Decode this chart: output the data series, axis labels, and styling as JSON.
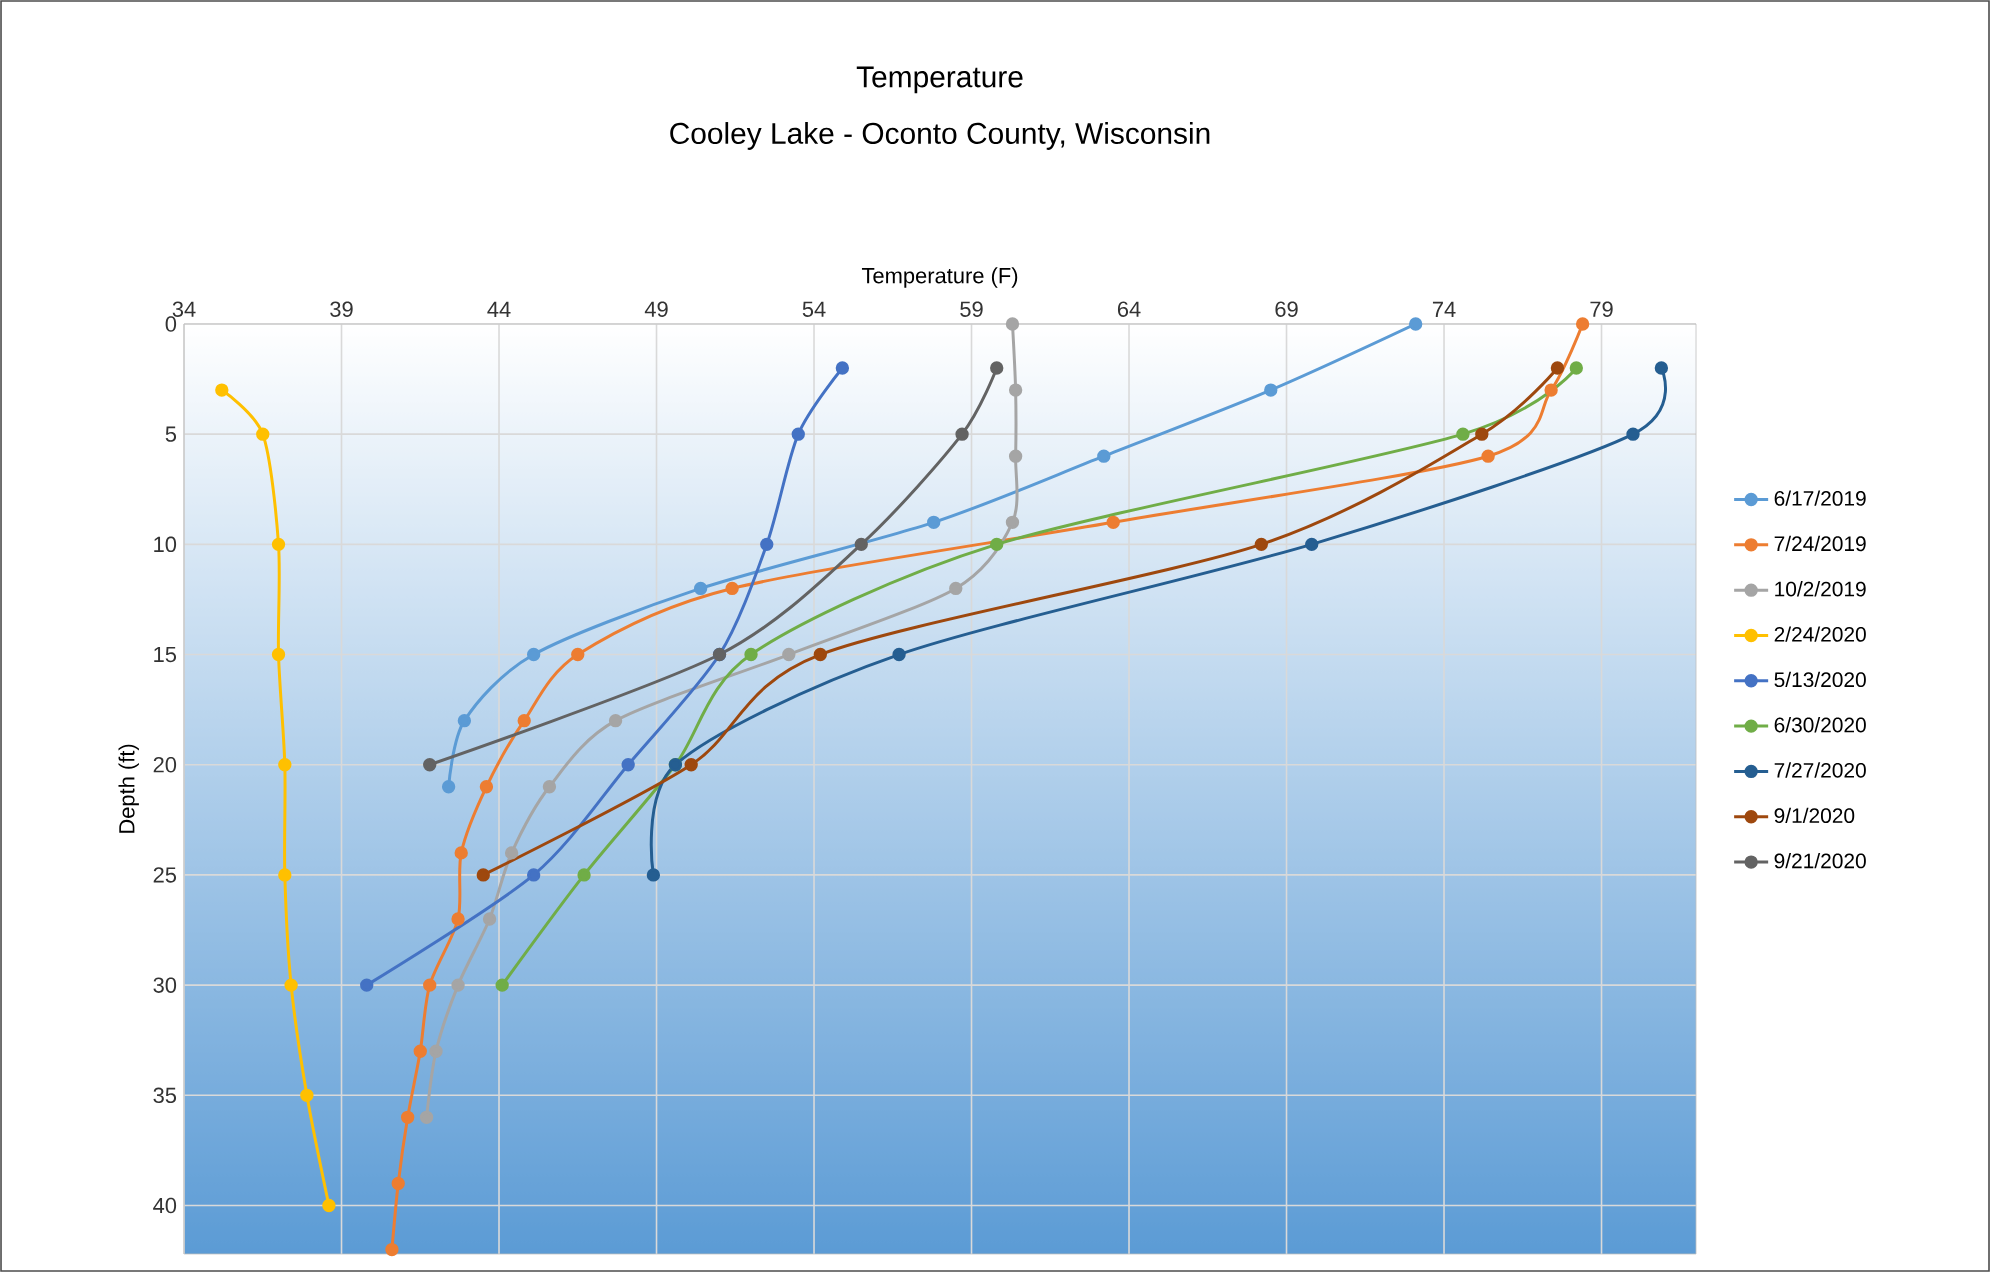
{
  "chart_data": {
    "type": "line",
    "title": "Temperature",
    "subtitle": "Cooley Lake - Oconto County, Wisconsin",
    "xlabel": "Temperature (F)",
    "ylabel": "Depth (ft)",
    "xlim": [
      34,
      82
    ],
    "ylim": [
      42.2,
      0
    ],
    "xticks": [
      34,
      39,
      44,
      49,
      54,
      59,
      64,
      69,
      74,
      79
    ],
    "yticks": [
      0,
      5,
      10,
      15,
      20,
      25,
      30,
      35,
      40
    ],
    "grid": true,
    "legend": "right",
    "marker": "circle",
    "line_style": "solid",
    "series": [
      {
        "name": "6/17/2019",
        "color": "#5b9bd5",
        "x": [
          73.1,
          68.5,
          63.2,
          57.8,
          50.4,
          45.1,
          42.9,
          42.4
        ],
        "values": [
          0,
          3,
          6,
          9,
          12,
          15,
          18,
          21
        ]
      },
      {
        "name": "7/24/2019",
        "color": "#ed7d31",
        "x": [
          78.4,
          77.4,
          75.4,
          63.5,
          51.4,
          46.5,
          44.8,
          43.6,
          42.8,
          42.7,
          41.8,
          41.5,
          41.1,
          40.8,
          40.6
        ],
        "values": [
          0,
          3,
          6,
          9,
          12,
          15,
          18,
          21,
          24,
          27,
          30,
          33,
          36,
          39,
          42
        ]
      },
      {
        "name": "10/2/2019",
        "color": "#a5a5a5",
        "x": [
          60.3,
          60.4,
          60.4,
          60.3,
          58.5,
          53.2,
          47.7,
          45.6,
          44.4,
          43.7,
          42.7,
          42.0,
          41.7
        ],
        "values": [
          0,
          3,
          6,
          9,
          12,
          15,
          18,
          21,
          24,
          27,
          30,
          33,
          36
        ]
      },
      {
        "name": "2/24/2020",
        "color": "#ffc000",
        "x": [
          35.2,
          36.5,
          37.0,
          37.0,
          37.2,
          37.2,
          37.4,
          37.9,
          38.6
        ],
        "values": [
          3,
          5,
          10,
          15,
          20,
          25,
          30,
          35,
          40
        ]
      },
      {
        "name": "5/13/2020",
        "color": "#4472c4",
        "x": [
          54.9,
          53.5,
          52.5,
          51.0,
          48.1,
          45.1,
          39.8
        ],
        "values": [
          2,
          5,
          10,
          15,
          20,
          25,
          30
        ]
      },
      {
        "name": "6/30/2020",
        "color": "#70ad47",
        "x": [
          78.2,
          74.6,
          59.8,
          52.0,
          49.6,
          46.7,
          44.1
        ],
        "values": [
          2,
          5,
          10,
          15,
          20,
          25,
          30
        ]
      },
      {
        "name": "7/27/2020",
        "color": "#255e91",
        "x": [
          80.9,
          80.0,
          69.8,
          56.7,
          49.6,
          48.9
        ],
        "values": [
          2,
          5,
          10,
          15,
          20,
          25
        ]
      },
      {
        "name": "9/1/2020",
        "color": "#9e480e",
        "x": [
          77.6,
          75.2,
          68.2,
          54.2,
          50.1,
          43.5
        ],
        "values": [
          2,
          5,
          10,
          15,
          20,
          25
        ]
      },
      {
        "name": "9/21/2020",
        "color": "#636363",
        "x": [
          59.8,
          58.7,
          55.5,
          51.0,
          41.8
        ],
        "values": [
          2,
          5,
          10,
          15,
          20
        ]
      }
    ]
  }
}
